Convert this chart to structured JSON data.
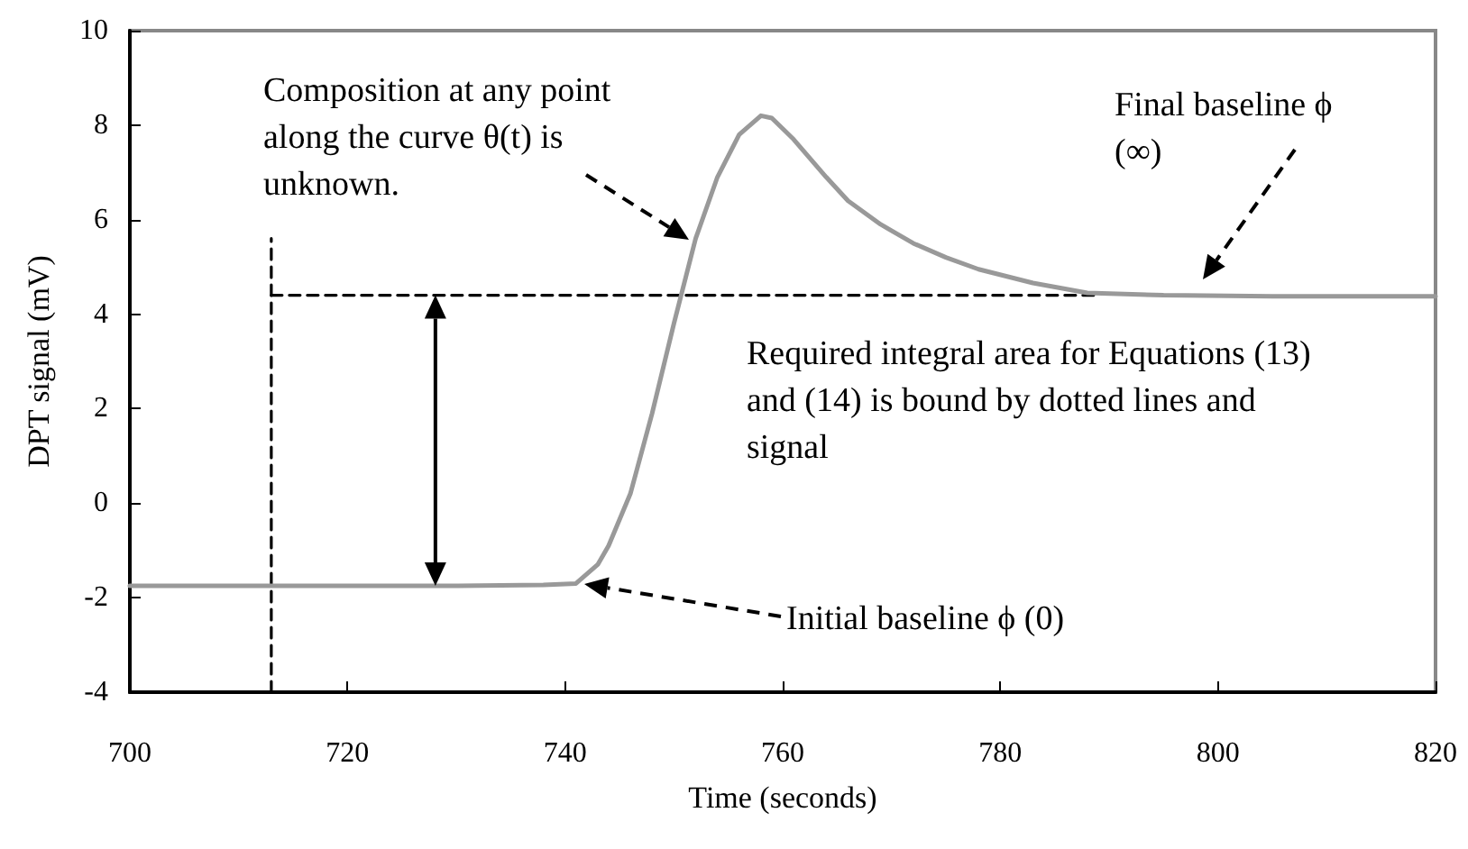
{
  "chart_data": {
    "type": "line",
    "xlabel": "Time (seconds)",
    "ylabel": "DPT signal (mV)",
    "xlim": [
      700,
      820
    ],
    "xticks": [
      700,
      720,
      740,
      760,
      780,
      800,
      820
    ],
    "ylim": [
      -4,
      10
    ],
    "yticks": [
      -4,
      -2,
      0,
      2,
      4,
      6,
      8,
      10
    ],
    "marker": "none",
    "series": [
      {
        "color": "#999999",
        "line_style": "solid",
        "x": [
          700,
          710,
          720,
          730,
          738,
          741,
          743,
          744,
          746,
          748,
          750,
          752,
          754,
          756,
          758,
          759,
          761,
          764,
          766,
          769,
          772,
          775,
          778,
          783,
          788,
          795,
          805,
          820
        ],
        "values": [
          -1.75,
          -1.75,
          -1.75,
          -1.75,
          -1.73,
          -1.7,
          -1.3,
          -0.9,
          0.2,
          1.9,
          3.8,
          5.6,
          6.9,
          7.8,
          8.2,
          8.15,
          7.7,
          6.9,
          6.4,
          5.9,
          5.5,
          5.2,
          4.95,
          4.66,
          4.45,
          4.4,
          4.38,
          4.38
        ]
      },
      {
        "color": "#000000",
        "line_style": "dashed",
        "x": [
          713,
          713
        ],
        "values": [
          -4,
          5.6
        ]
      },
      {
        "color": "#000000",
        "line_style": "dashed",
        "x": [
          713,
          789
        ],
        "values": [
          4.4,
          4.4
        ]
      }
    ],
    "annotations": [
      "Composition at any point along the curve θ(t) is unknown.",
      "Final baseline ϕ (∞)",
      "Required integral area for Equations (13) and (14) is bound by dotted lines and signal",
      "Initial baseline ϕ (0)"
    ]
  }
}
